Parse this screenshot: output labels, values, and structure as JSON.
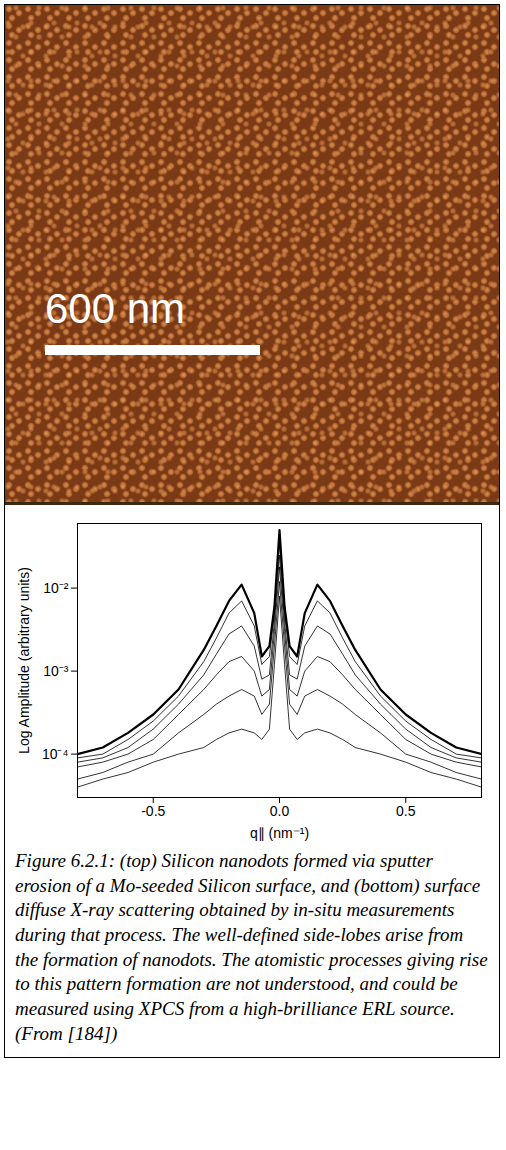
{
  "image": {
    "scale_bar": "600 nm"
  },
  "chart_data": {
    "type": "line",
    "xlabel": "q∥ (nm⁻¹)",
    "ylabel": "Log Amplitude (arbitrary units)",
    "log": "y",
    "xlim": [
      -0.8,
      0.8
    ],
    "ylim": [
      3e-05,
      0.06
    ],
    "xticks": [
      -0.5,
      {
        "value": 0,
        "label": "0.0"
      },
      0.5
    ],
    "yticks": [
      {
        "value": 0.0001,
        "label": "10⁻⁴"
      },
      {
        "value": 0.001,
        "label": "10⁻³"
      },
      {
        "value": 0.01,
        "label": "10⁻²"
      }
    ],
    "x": [
      -0.8,
      -0.7,
      -0.6,
      -0.5,
      -0.4,
      -0.3,
      -0.25,
      -0.2,
      -0.15,
      -0.1,
      -0.07,
      -0.04,
      -0.02,
      0,
      0.02,
      0.04,
      0.07,
      0.1,
      0.15,
      0.2,
      0.25,
      0.3,
      0.4,
      0.5,
      0.6,
      0.7,
      0.8
    ],
    "series": [
      {
        "color": "#000000",
        "values": [
          0.0001,
          0.00012,
          0.00018,
          0.0003,
          0.0006,
          0.0018,
          0.0035,
          0.007,
          0.011,
          0.005,
          0.0015,
          0.002,
          0.006,
          0.05,
          0.006,
          0.002,
          0.0015,
          0.005,
          0.011,
          0.007,
          0.0035,
          0.0018,
          0.0006,
          0.0003,
          0.00018,
          0.00012,
          0.0001
        ]
      },
      {
        "color": "#000000",
        "values": [
          9e-05,
          0.0001,
          0.00015,
          0.00025,
          0.0005,
          0.0013,
          0.0025,
          0.005,
          0.007,
          0.0035,
          0.0012,
          0.0015,
          0.005,
          0.035,
          0.005,
          0.0015,
          0.0012,
          0.0035,
          0.007,
          0.005,
          0.0025,
          0.0013,
          0.0005,
          0.00025,
          0.00015,
          0.0001,
          9e-05
        ]
      },
      {
        "color": "#000000",
        "values": [
          8e-05,
          9e-05,
          0.00012,
          0.0002,
          0.0004,
          0.0009,
          0.0016,
          0.0028,
          0.0035,
          0.002,
          0.0008,
          0.0009,
          0.004,
          0.025,
          0.004,
          0.0009,
          0.0008,
          0.002,
          0.0035,
          0.0028,
          0.0016,
          0.0009,
          0.0004,
          0.0002,
          0.00012,
          9e-05,
          8e-05
        ]
      },
      {
        "color": "#000000",
        "values": [
          7e-05,
          8e-05,
          0.0001,
          0.00015,
          0.0003,
          0.0006,
          0.0009,
          0.0013,
          0.0015,
          0.001,
          0.0005,
          0.0006,
          0.003,
          0.018,
          0.003,
          0.0006,
          0.0005,
          0.001,
          0.0015,
          0.0013,
          0.0009,
          0.0006,
          0.0003,
          0.00015,
          0.0001,
          8e-05,
          7e-05
        ]
      },
      {
        "color": "#000000",
        "values": [
          5e-05,
          6e-05,
          8e-05,
          0.0001,
          0.00018,
          0.0003,
          0.0004,
          0.0005,
          0.0006,
          0.0005,
          0.0003,
          0.0004,
          0.002,
          0.012,
          0.002,
          0.0004,
          0.0003,
          0.0005,
          0.0006,
          0.0005,
          0.0004,
          0.0003,
          0.00018,
          0.0001,
          8e-05,
          6e-05,
          5e-05
        ]
      },
      {
        "color": "#000000",
        "values": [
          4e-05,
          5e-05,
          6e-05,
          8e-05,
          0.0001,
          0.00012,
          0.00015,
          0.00018,
          0.0002,
          0.00018,
          0.00015,
          0.0002,
          0.0012,
          0.008,
          0.0012,
          0.0002,
          0.00015,
          0.00018,
          0.0002,
          0.00018,
          0.00015,
          0.00012,
          0.0001,
          8e-05,
          6e-05,
          5e-05,
          4e-05
        ]
      }
    ]
  },
  "caption": "Figure 6.2.1: (top) Silicon nanodots formed via sputter erosion of a Mo-seeded Silicon surface, and (bottom) surface diffuse X-ray scattering obtained by in-situ measurements during that process. The well-defined side-lobes arise from the formation of nanodots. The atomistic processes giving rise to this pattern formation are not understood, and could be measured using XPCS from a high-brilliance ERL source. (From [184])"
}
